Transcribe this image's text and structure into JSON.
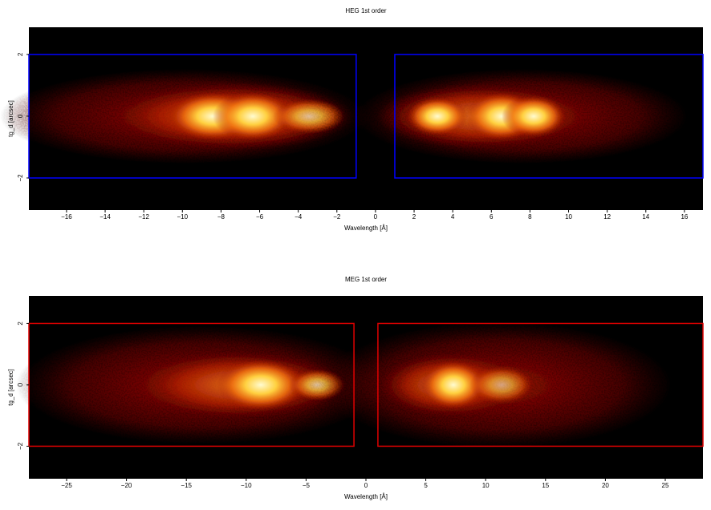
{
  "chart_data": [
    {
      "type": "heatmap",
      "title": "HEG 1st order",
      "x_label": "Wavelength [Å]",
      "y_label": "tg_d [arcsec]",
      "xlim": [
        -17.95,
        16.96
      ],
      "ylim": [
        -3.04,
        2.88
      ],
      "xticks": [
        {
          "value": -16,
          "label": "−16"
        },
        {
          "value": -14,
          "label": "−14"
        },
        {
          "value": -12,
          "label": "−12"
        },
        {
          "value": -10,
          "label": "−10"
        },
        {
          "value": -8,
          "label": "−8"
        },
        {
          "value": -6,
          "label": "−6"
        },
        {
          "value": -4,
          "label": "−4"
        },
        {
          "value": -2,
          "label": "−2"
        },
        0,
        2,
        4,
        6,
        8,
        10,
        12,
        14,
        16
      ],
      "yticks": [
        {
          "value": -2,
          "label": "−2"
        },
        0,
        2
      ],
      "regions": [
        {
          "xlim": [
            -17.95,
            -1
          ],
          "ylim": [
            -2,
            2
          ]
        },
        {
          "xlim": [
            1,
            16.96
          ],
          "ylim": [
            -2,
            2
          ]
        }
      ],
      "region_color": "#0000ff"
    },
    {
      "type": "heatmap",
      "title": "MEG 1st order",
      "x_label": "Wavelength [Å]",
      "y_label": "tg_d [arcsec]",
      "xlim": [
        -28.15,
        28.15
      ],
      "ylim": [
        -3.06,
        2.9
      ],
      "xticks": [
        {
          "value": -25,
          "label": "−25"
        },
        {
          "value": -20,
          "label": "−20"
        },
        {
          "value": -15,
          "label": "−15"
        },
        {
          "value": -10,
          "label": "−10"
        },
        {
          "value": -5,
          "label": "−5"
        },
        0,
        5,
        10,
        15,
        20,
        25
      ],
      "yticks": [
        {
          "value": -2,
          "label": "−2"
        },
        0,
        2
      ],
      "regions": [
        {
          "xlim": [
            -28.15,
            -1
          ],
          "ylim": [
            -2,
            2
          ]
        },
        {
          "xlim": [
            1,
            28.15
          ],
          "ylim": [
            -2,
            2
          ]
        }
      ],
      "region_color": "#e00000"
    }
  ]
}
